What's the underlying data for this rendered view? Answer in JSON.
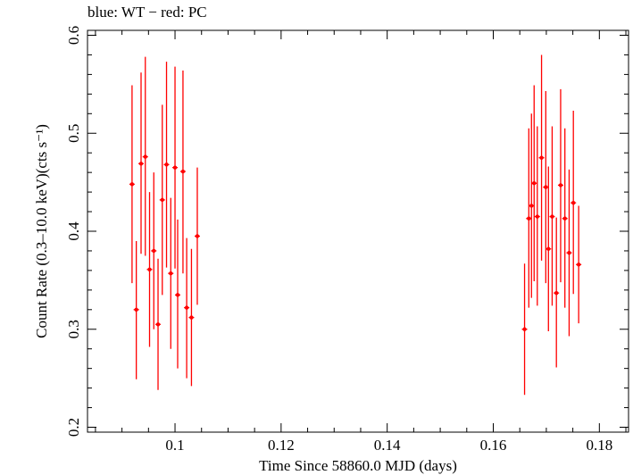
{
  "chart_data": {
    "type": "scatter",
    "title": "blue: WT − red: PC",
    "xlabel": "Time Since 58860.0 MJD (days)",
    "ylabel": "Count Rate (0.3–10.0 keV)(cts s⁻¹)",
    "xlim": [
      0.0835,
      0.1855
    ],
    "ylim": [
      0.195,
      0.605
    ],
    "xticks": [
      0.1,
      0.12,
      0.14,
      0.16,
      0.18
    ],
    "xtick_labels": [
      "0.1",
      "0.12",
      "0.14",
      "0.16",
      "0.18"
    ],
    "yticks": [
      0.2,
      0.3,
      0.4,
      0.5,
      0.6
    ],
    "ytick_labels": [
      "0.2",
      "0.3",
      "0.4",
      "0.5",
      "0.6"
    ],
    "grid": false,
    "legend": "none",
    "series": [
      {
        "color": "#ff0000",
        "points": [
          {
            "x": 0.0919,
            "y": 0.448,
            "ylo": 0.347,
            "yhi": 0.549
          },
          {
            "x": 0.0927,
            "y": 0.32,
            "ylo": 0.249,
            "yhi": 0.39
          },
          {
            "x": 0.0936,
            "y": 0.469,
            "ylo": 0.377,
            "yhi": 0.562
          },
          {
            "x": 0.0944,
            "y": 0.476,
            "ylo": 0.375,
            "yhi": 0.578
          },
          {
            "x": 0.0952,
            "y": 0.361,
            "ylo": 0.282,
            "yhi": 0.44
          },
          {
            "x": 0.096,
            "y": 0.38,
            "ylo": 0.3,
            "yhi": 0.46
          },
          {
            "x": 0.0968,
            "y": 0.305,
            "ylo": 0.238,
            "yhi": 0.372
          },
          {
            "x": 0.0976,
            "y": 0.432,
            "ylo": 0.335,
            "yhi": 0.529
          },
          {
            "x": 0.0984,
            "y": 0.468,
            "ylo": 0.363,
            "yhi": 0.573
          },
          {
            "x": 0.0992,
            "y": 0.357,
            "ylo": 0.28,
            "yhi": 0.434
          },
          {
            "x": 0.1,
            "y": 0.465,
            "ylo": 0.362,
            "yhi": 0.568
          },
          {
            "x": 0.1005,
            "y": 0.335,
            "ylo": 0.26,
            "yhi": 0.412
          },
          {
            "x": 0.1015,
            "y": 0.461,
            "ylo": 0.357,
            "yhi": 0.564
          },
          {
            "x": 0.1022,
            "y": 0.322,
            "ylo": 0.25,
            "yhi": 0.393
          },
          {
            "x": 0.1031,
            "y": 0.312,
            "ylo": 0.242,
            "yhi": 0.382
          },
          {
            "x": 0.1042,
            "y": 0.395,
            "ylo": 0.325,
            "yhi": 0.465
          },
          {
            "x": 0.1659,
            "y": 0.3,
            "ylo": 0.233,
            "yhi": 0.367
          },
          {
            "x": 0.1667,
            "y": 0.413,
            "ylo": 0.322,
            "yhi": 0.505
          },
          {
            "x": 0.1672,
            "y": 0.426,
            "ylo": 0.332,
            "yhi": 0.52
          },
          {
            "x": 0.1677,
            "y": 0.449,
            "ylo": 0.349,
            "yhi": 0.549
          },
          {
            "x": 0.1683,
            "y": 0.415,
            "ylo": 0.324,
            "yhi": 0.507
          },
          {
            "x": 0.1691,
            "y": 0.475,
            "ylo": 0.37,
            "yhi": 0.58
          },
          {
            "x": 0.1699,
            "y": 0.445,
            "ylo": 0.347,
            "yhi": 0.543
          },
          {
            "x": 0.1704,
            "y": 0.382,
            "ylo": 0.298,
            "yhi": 0.466
          },
          {
            "x": 0.1711,
            "y": 0.415,
            "ylo": 0.324,
            "yhi": 0.507
          },
          {
            "x": 0.1719,
            "y": 0.337,
            "ylo": 0.261,
            "yhi": 0.414
          },
          {
            "x": 0.1727,
            "y": 0.447,
            "ylo": 0.348,
            "yhi": 0.545
          },
          {
            "x": 0.1735,
            "y": 0.413,
            "ylo": 0.322,
            "yhi": 0.505
          },
          {
            "x": 0.1743,
            "y": 0.378,
            "ylo": 0.293,
            "yhi": 0.463
          },
          {
            "x": 0.1751,
            "y": 0.429,
            "ylo": 0.336,
            "yhi": 0.523
          },
          {
            "x": 0.1761,
            "y": 0.366,
            "ylo": 0.306,
            "yhi": 0.426
          }
        ]
      }
    ]
  }
}
